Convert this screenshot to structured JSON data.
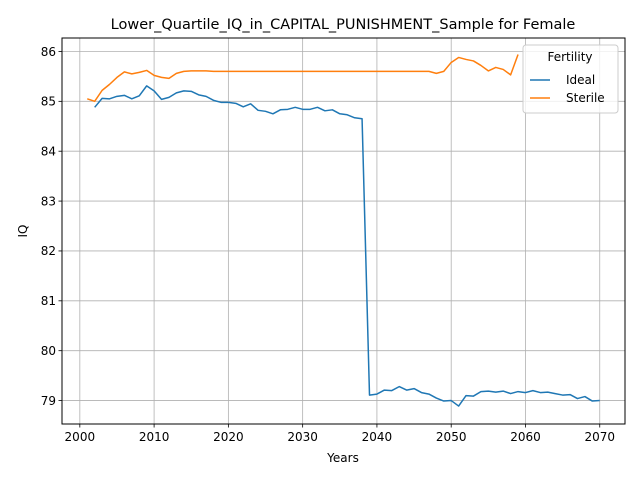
{
  "chart_data": {
    "type": "line",
    "title": "Lower_Quartile_IQ_in_CAPITAL_PUNISHMENT_Sample for Female",
    "xlabel": "Years",
    "ylabel": "IQ",
    "xlim": [
      1997.6,
      2073.4
    ],
    "ylim": [
      78.53,
      86.27
    ],
    "xticks": [
      2000,
      2010,
      2020,
      2030,
      2040,
      2050,
      2060,
      2070
    ],
    "yticks": [
      79,
      80,
      81,
      82,
      83,
      84,
      85,
      86
    ],
    "grid": true,
    "legend": {
      "title": "Fertility",
      "placement": "top-right"
    },
    "series": [
      {
        "name": "Ideal",
        "color": "#1f77b4",
        "x": [
          2002,
          2003,
          2004,
          2005,
          2006,
          2007,
          2008,
          2009,
          2010,
          2011,
          2012,
          2013,
          2014,
          2015,
          2016,
          2017,
          2018,
          2019,
          2020,
          2021,
          2022,
          2023,
          2024,
          2025,
          2026,
          2027,
          2028,
          2029,
          2030,
          2031,
          2032,
          2033,
          2034,
          2035,
          2036,
          2037,
          2038,
          2039,
          2040,
          2041,
          2042,
          2043,
          2044,
          2045,
          2046,
          2047,
          2048,
          2049,
          2050,
          2051,
          2052,
          2053,
          2054,
          2055,
          2056,
          2057,
          2058,
          2059,
          2060,
          2061,
          2062,
          2063,
          2064,
          2065,
          2066,
          2067,
          2068,
          2069,
          2070
        ],
        "y": [
          84.88,
          85.06,
          85.05,
          85.1,
          85.12,
          85.05,
          85.11,
          85.31,
          85.21,
          85.04,
          85.08,
          85.17,
          85.21,
          85.2,
          85.13,
          85.1,
          85.02,
          84.98,
          84.98,
          84.96,
          84.89,
          84.95,
          84.82,
          84.8,
          84.75,
          84.83,
          84.84,
          84.88,
          84.84,
          84.84,
          84.88,
          84.81,
          84.83,
          84.75,
          84.73,
          84.67,
          84.65,
          79.11,
          79.13,
          79.21,
          79.2,
          79.28,
          79.21,
          79.24,
          79.16,
          79.13,
          79.05,
          78.99,
          79.0,
          78.89,
          79.1,
          79.09,
          79.18,
          79.19,
          79.17,
          79.19,
          79.14,
          79.18,
          79.16,
          79.2,
          79.16,
          79.17,
          79.14,
          79.11,
          79.12,
          79.04,
          79.08,
          78.99,
          79.0
        ]
      },
      {
        "name": "Sterile",
        "color": "#ff7f0e",
        "x": [
          2001,
          2002,
          2003,
          2004,
          2005,
          2006,
          2007,
          2008,
          2009,
          2010,
          2011,
          2012,
          2013,
          2014,
          2015,
          2016,
          2017,
          2018,
          2019,
          2020,
          2021,
          2022,
          2023,
          2024,
          2025,
          2026,
          2027,
          2028,
          2029,
          2030,
          2031,
          2032,
          2033,
          2034,
          2035,
          2036,
          2037,
          2038,
          2039,
          2040,
          2041,
          2042,
          2043,
          2044,
          2045,
          2046,
          2047,
          2048,
          2049,
          2050,
          2051,
          2052,
          2053,
          2054,
          2055,
          2056,
          2057,
          2058,
          2059
        ],
        "y": [
          85.05,
          85.0,
          85.22,
          85.34,
          85.48,
          85.59,
          85.55,
          85.58,
          85.62,
          85.52,
          85.48,
          85.46,
          85.56,
          85.6,
          85.61,
          85.61,
          85.61,
          85.6,
          85.6,
          85.6,
          85.6,
          85.6,
          85.6,
          85.6,
          85.6,
          85.6,
          85.6,
          85.6,
          85.6,
          85.6,
          85.6,
          85.6,
          85.6,
          85.6,
          85.6,
          85.6,
          85.6,
          85.6,
          85.6,
          85.6,
          85.6,
          85.6,
          85.6,
          85.6,
          85.6,
          85.6,
          85.6,
          85.56,
          85.6,
          85.78,
          85.88,
          85.84,
          85.81,
          85.72,
          85.61,
          85.68,
          85.64,
          85.53,
          85.94
        ]
      }
    ]
  }
}
